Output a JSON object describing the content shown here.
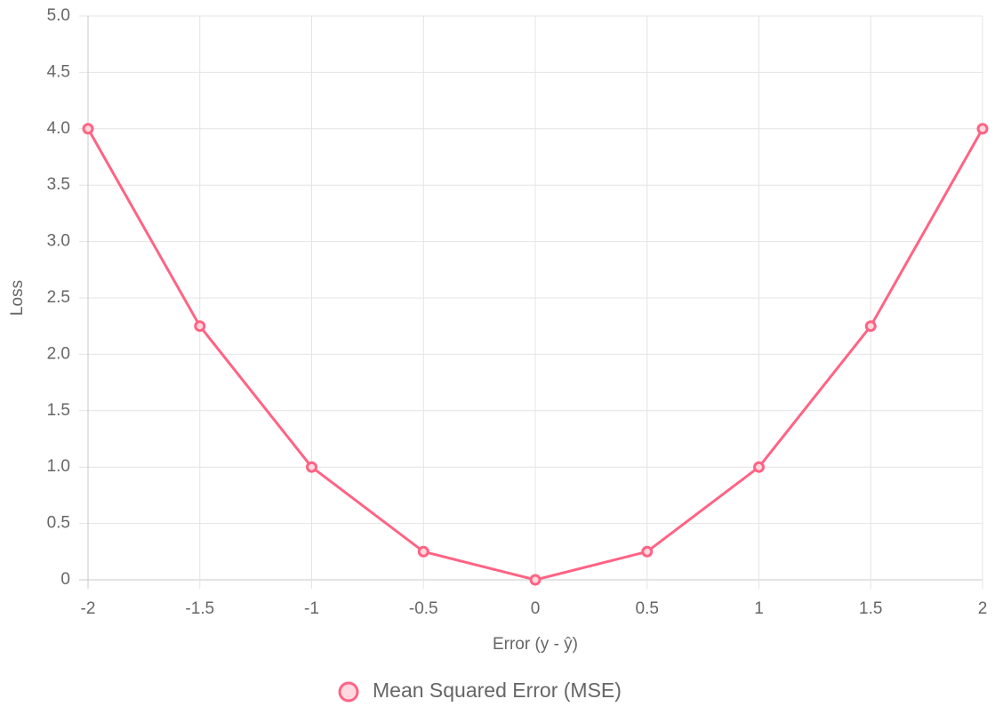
{
  "chart_data": {
    "type": "line",
    "x_label": "Error (y - ŷ)",
    "y_label": "Loss",
    "x": [
      -2,
      -1.5,
      -1,
      -0.5,
      0,
      0.5,
      1,
      1.5,
      2
    ],
    "xlim": [
      -2,
      2
    ],
    "xticks": [
      -2,
      -1.5,
      -1,
      -0.5,
      0,
      0.5,
      1,
      1.5,
      2
    ],
    "ylim": [
      0,
      5
    ],
    "yticks": [
      0,
      {
        "value": 0.5,
        "label": "0.5"
      },
      {
        "value": 1,
        "label": "1.0"
      },
      {
        "value": 1.5,
        "label": "1.5"
      },
      {
        "value": 2,
        "label": "2.0"
      },
      {
        "value": 2.5,
        "label": "2.5"
      },
      {
        "value": 3,
        "label": "3.0"
      },
      {
        "value": 3.5,
        "label": "3.5"
      },
      {
        "value": 4,
        "label": "4.0"
      },
      {
        "value": 4.5,
        "label": "4.5"
      },
      {
        "value": 5,
        "label": "5.0"
      }
    ],
    "grid": true,
    "legend": "bottom",
    "series": [
      {
        "name": "Mean Squared Error (MSE)",
        "color": "#ff6384",
        "values": [
          4,
          2.25,
          1,
          0.25,
          0,
          0.25,
          1,
          2.25,
          4
        ]
      }
    ]
  }
}
